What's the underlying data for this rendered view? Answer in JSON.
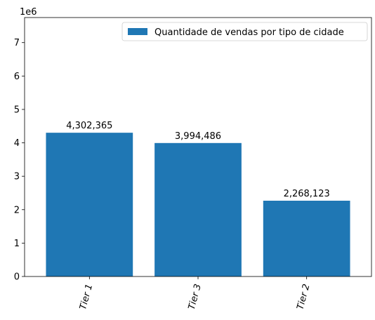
{
  "chart_data": {
    "type": "bar",
    "categories": [
      "Tier 1",
      "Tier 3",
      "Tier 2"
    ],
    "values": [
      4302365,
      3994486,
      2268123
    ],
    "value_labels": [
      "4,302,365",
      "3,994,486",
      "2,268,123"
    ],
    "series_name": "Quantidade de vendas por tipo de cidade",
    "ylim": [
      0,
      7750000
    ],
    "yticks": [
      0,
      1000000,
      2000000,
      3000000,
      4000000,
      5000000,
      6000000,
      7000000
    ],
    "ytick_labels": [
      "0",
      "1",
      "2",
      "3",
      "4",
      "5",
      "6",
      "7"
    ],
    "y_offset_label": "1e6",
    "bar_color": "#1f77b4",
    "legend_position": "upper right",
    "grid": false
  }
}
